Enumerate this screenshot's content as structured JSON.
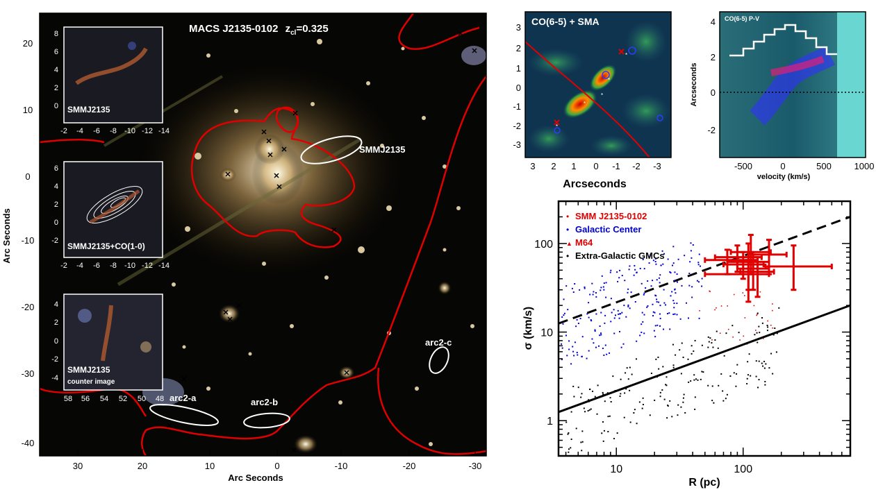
{
  "main_image": {
    "title_main": "MACS J2135-0102",
    "title_z": "z",
    "title_sub": "cl",
    "title_val": "=0.325",
    "xlabel": "Arc Seconds",
    "ylabel": "Arc Seconds",
    "xticks": [
      "30",
      "20",
      "10",
      "0",
      "-10",
      "-20",
      "-30"
    ],
    "yticks": [
      "20",
      "10",
      "0",
      "-10",
      "-20",
      "-30",
      "-40"
    ],
    "labels": {
      "smm": "SMMJ2135",
      "arc2a": "arc2-a",
      "arc2b": "arc2-b",
      "arc2c": "arc2-c"
    },
    "insets": [
      {
        "label": "SMMJ2135",
        "sublabel": "",
        "yticks": [
          "8",
          "6",
          "4",
          "2",
          "0"
        ],
        "xticks": [
          "-2",
          "-4",
          "-6",
          "-8",
          "-10",
          "-12",
          "-14"
        ]
      },
      {
        "label": "SMMJ2135+CO(1-0)",
        "sublabel": "",
        "yticks": [
          "6",
          "4",
          "2",
          "0",
          "-2"
        ],
        "xticks": [
          "-2",
          "-4",
          "-6",
          "-8",
          "-10",
          "-12",
          "-14"
        ]
      },
      {
        "label": "SMMJ2135",
        "sublabel": "counter image",
        "yticks": [
          "4",
          "2",
          "0",
          "-2",
          "-4"
        ],
        "xticks": [
          "58",
          "56",
          "54",
          "52",
          "50",
          "48"
        ]
      }
    ]
  },
  "co_map": {
    "title": "CO(6-5) + SMA",
    "xlabel": "Arcseconds",
    "xticks": [
      "3",
      "2",
      "1",
      "0",
      "-1",
      "-2",
      "-3"
    ],
    "yticks": [
      "3",
      "2",
      "1",
      "0",
      "-1",
      "-2",
      "-3"
    ]
  },
  "pv_panel": {
    "title": "CO(6-5) P-V",
    "xlabel": "velocity (km/s)",
    "ylabel": "Arcseconds",
    "xticks": [
      "-500",
      "0",
      "500",
      "1000"
    ],
    "yticks": [
      "4",
      "2",
      "0",
      "-2"
    ]
  },
  "chart_data": {
    "type": "scatter",
    "xlabel": "R (pc)",
    "ylabel": "σ (km/s)",
    "xscale": "log",
    "yscale": "log",
    "xlim": [
      3.5,
      700
    ],
    "ylim": [
      0.4,
      300
    ],
    "xticks": [
      10,
      100
    ],
    "yticks": [
      1,
      10,
      100
    ],
    "legend_position": "top-left",
    "colors": {
      "smm": "#e00000",
      "gc": "#0000cc",
      "m64": "#e00000",
      "gmc": "#000000"
    },
    "legend": [
      {
        "label": "SMM J2135-0102",
        "color": "#e00000"
      },
      {
        "label": "Galactic Center",
        "color": "#0000cc"
      },
      {
        "label": "M64",
        "color": "#e00000"
      },
      {
        "label": "Extra-Galactic GMCs",
        "color": "#000000"
      }
    ],
    "lines": [
      {
        "style": "dashed",
        "x": [
          3.5,
          700
        ],
        "y": [
          12.5,
          200
        ]
      },
      {
        "style": "solid",
        "x": [
          3.5,
          700
        ],
        "y": [
          1.25,
          20
        ]
      }
    ],
    "smm_points": [
      {
        "x": 75,
        "y": 65,
        "xerr": [
          50,
          130
        ],
        "yerr": [
          45,
          85
        ]
      },
      {
        "x": 90,
        "y": 70,
        "xerr": [
          60,
          140
        ],
        "yerr": [
          48,
          95
        ]
      },
      {
        "x": 100,
        "y": 58,
        "xerr": [
          70,
          145
        ],
        "yerr": [
          40,
          80
        ]
      },
      {
        "x": 110,
        "y": 62,
        "xerr": [
          75,
          160
        ],
        "yerr": [
          22,
          100
        ]
      },
      {
        "x": 115,
        "y": 80,
        "xerr": [
          80,
          165
        ],
        "yerr": [
          45,
          125
        ]
      },
      {
        "x": 110,
        "y": 45,
        "xerr": [
          50,
          160
        ],
        "yerr": [
          30,
          65
        ]
      },
      {
        "x": 120,
        "y": 52,
        "xerr": [
          90,
          160
        ],
        "yerr": [
          30,
          75
        ]
      },
      {
        "x": 130,
        "y": 48,
        "xerr": [
          95,
          175
        ],
        "yerr": [
          25,
          70
        ]
      },
      {
        "x": 160,
        "y": 75,
        "xerr": [
          110,
          220
        ],
        "yerr": [
          45,
          110
        ]
      },
      {
        "x": 250,
        "y": 55,
        "xerr": [
          150,
          500
        ],
        "yerr": [
          30,
          95
        ]
      }
    ]
  }
}
